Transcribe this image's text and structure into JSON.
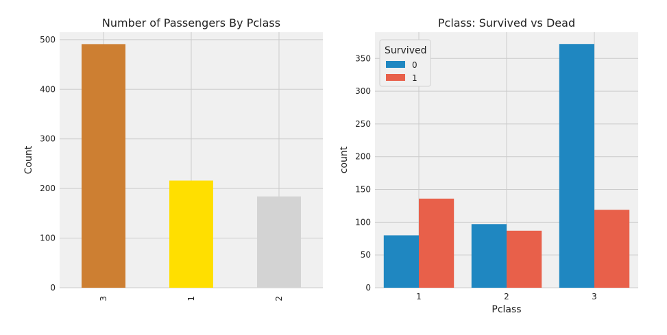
{
  "chart_data": [
    {
      "type": "bar",
      "title": "Number of Passengers By Pclass",
      "xlabel": "",
      "ylabel": "Count",
      "categories": [
        "3",
        "1",
        "2"
      ],
      "values": [
        491,
        216,
        184
      ],
      "colors": [
        "#CD7F32",
        "#FFDF00",
        "#D3D3D3"
      ],
      "ylim": [
        0,
        515
      ],
      "yticks": [
        0,
        100,
        200,
        300,
        400,
        500
      ],
      "grid": true,
      "xtick_rotation": 90
    },
    {
      "type": "bar",
      "title": "Pclass: Survived vs Dead",
      "xlabel": "Pclass",
      "ylabel": "count",
      "categories": [
        "1",
        "2",
        "3"
      ],
      "series": [
        {
          "name": "0",
          "values": [
            80,
            97,
            372
          ],
          "color": "#1F87C1"
        },
        {
          "name": "1",
          "values": [
            136,
            87,
            119
          ],
          "color": "#E8604A"
        }
      ],
      "legend": {
        "title": "Survived",
        "position": "top-left"
      },
      "ylim": [
        0,
        390
      ],
      "yticks": [
        0,
        50,
        100,
        150,
        200,
        250,
        300,
        350
      ],
      "grid": true
    }
  ],
  "style": {
    "panel_bg": "#F0F0F0",
    "grid_color": "#CBCBCB"
  }
}
